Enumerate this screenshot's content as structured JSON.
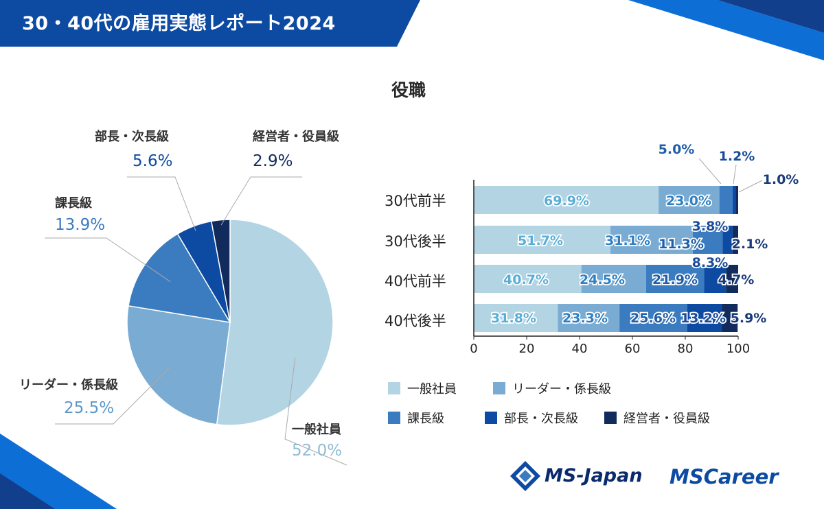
{
  "header": {
    "title": "30・40代の雇用実態レポート2024"
  },
  "chart_title": "役職",
  "categories": [
    "一般社員",
    "リーダー・係長級",
    "課長級",
    "部長・次長級",
    "経営者・役員級"
  ],
  "colors": [
    "#b3d4e3",
    "#7aabd2",
    "#3b7bbf",
    "#0d4aa2",
    "#102b5c"
  ],
  "chart_data": [
    {
      "type": "pie",
      "labels": [
        "一般社員",
        "リーダー・係長級",
        "課長級",
        "部長・次長級",
        "経営者・役員級"
      ],
      "values": [
        52.0,
        25.5,
        13.9,
        5.6,
        2.9
      ],
      "value_labels": [
        "52.0%",
        "25.5%",
        "13.9%",
        "5.6%",
        "2.9%"
      ]
    },
    {
      "type": "bar",
      "orientation": "horizontal-stacked",
      "title": "役職",
      "categories": [
        "30代前半",
        "30代後半",
        "40代前半",
        "40代後半"
      ],
      "series": [
        {
          "name": "一般社員",
          "values": [
            69.9,
            51.7,
            40.7,
            31.8
          ],
          "labels": [
            "69.9%",
            "51.7%",
            "40.7%",
            "31.8%"
          ]
        },
        {
          "name": "リーダー・係長級",
          "values": [
            23.0,
            31.1,
            24.5,
            23.3
          ],
          "labels": [
            "23.0%",
            "31.1%",
            "24.5%",
            "23.3%"
          ]
        },
        {
          "name": "課長級",
          "values": [
            5.0,
            11.3,
            21.9,
            25.6
          ],
          "labels": [
            "5.0%",
            "11.3%",
            "21.9%",
            "25.6%"
          ]
        },
        {
          "name": "部長・次長級",
          "values": [
            1.2,
            3.8,
            8.3,
            13.2
          ],
          "labels": [
            "1.2%",
            "3.8%",
            "8.3%",
            "13.2%"
          ]
        },
        {
          "name": "経営者・役員級",
          "values": [
            1.0,
            2.1,
            4.7,
            5.9
          ],
          "labels": [
            "1.0%",
            "2.1%",
            "4.7%",
            "5.9%"
          ]
        }
      ],
      "xlim": [
        0,
        100
      ],
      "xticks": [
        0,
        20,
        40,
        60,
        80,
        100
      ],
      "xtick_labels": [
        "0",
        "20",
        "40",
        "60",
        "80",
        "100"
      ]
    }
  ],
  "brand": {
    "ms_japan": "MS-Japan",
    "ms_career": "MSCareer"
  }
}
